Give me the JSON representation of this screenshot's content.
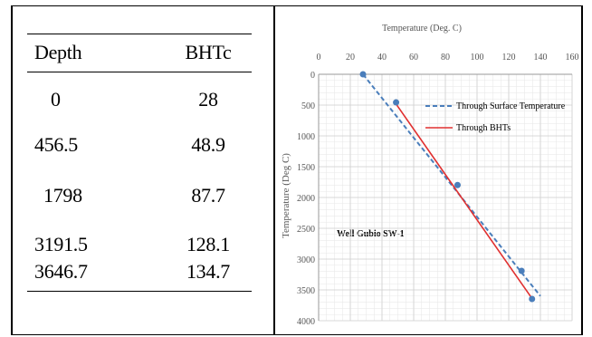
{
  "table": {
    "headers": [
      "Depth",
      "BHTc"
    ],
    "rows": [
      [
        "0",
        "28"
      ],
      [
        "456.5",
        "48.9"
      ],
      [
        "1798",
        "87.7"
      ],
      [
        "3191.5",
        "128.1"
      ],
      [
        "3646.7",
        "134.7"
      ]
    ]
  },
  "chart_data": {
    "type": "scatter",
    "title": "Temperature (Deg. C)",
    "xlabel": "Temperature (Deg. C)",
    "ylabel": "Temperature (Deg C)",
    "xlim": [
      0,
      160
    ],
    "ylim": [
      0,
      4000
    ],
    "y_inverted": true,
    "x_axis_position": "top",
    "x_ticks": [
      "0",
      "20",
      "40",
      "60",
      "80",
      "100",
      "120",
      "140",
      "160"
    ],
    "y_ticks": [
      "0",
      "500",
      "1000",
      "1500",
      "2000",
      "2500",
      "3000",
      "3500",
      "4000"
    ],
    "grid": true,
    "legend_position": "top-right",
    "annotation": "Well Gubio SW-1",
    "points": [
      {
        "x": 28,
        "y": 0
      },
      {
        "x": 48.9,
        "y": 456.5
      },
      {
        "x": 87.7,
        "y": 1798
      },
      {
        "x": 128.1,
        "y": 3191.5
      },
      {
        "x": 134.7,
        "y": 3646.7
      }
    ],
    "series": [
      {
        "name": "Through Surface Temperature",
        "style": "dashed",
        "color": "#4a7ebb",
        "x": [
          28,
          140
        ],
        "y": [
          0,
          3600
        ]
      },
      {
        "name": "Through BHTs",
        "style": "solid",
        "color": "#e03030",
        "x": [
          48,
          135
        ],
        "y": [
          450,
          3650
        ]
      }
    ],
    "marker_color": "#4a7ebb"
  }
}
